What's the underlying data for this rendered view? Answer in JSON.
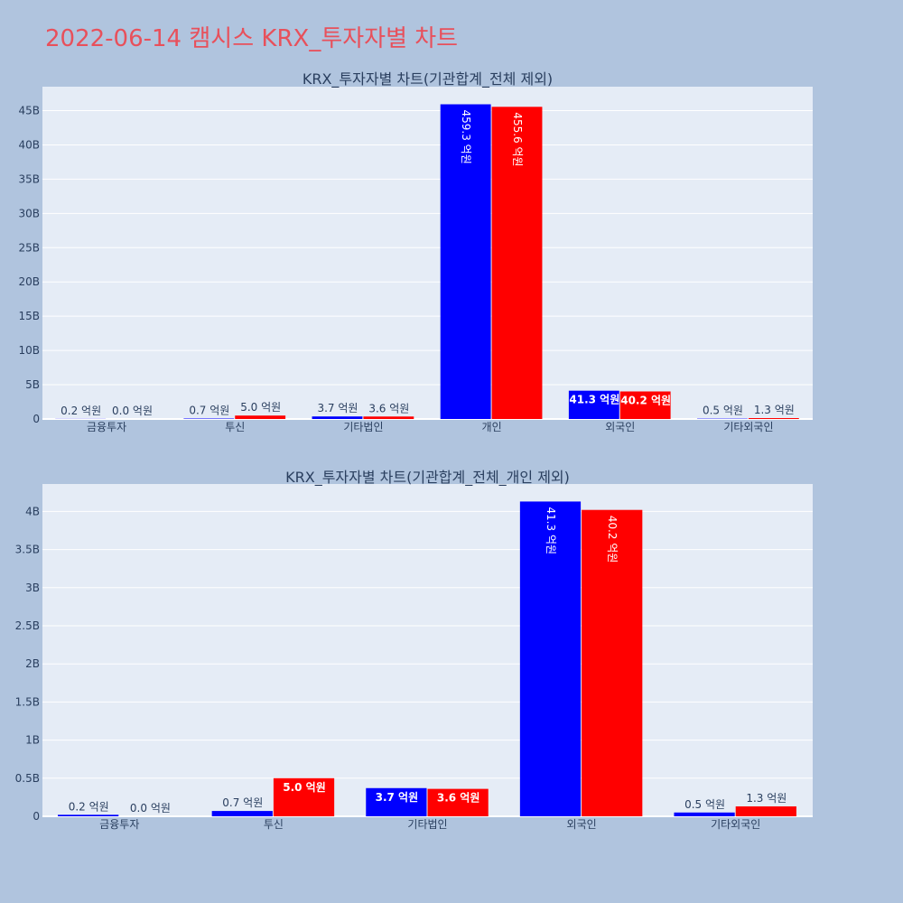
{
  "page_title": "2022-06-14 캠시스 KRX_투자자별 차트",
  "colors": {
    "background": "#b0c4de",
    "plot_bg": "#e5ecf6",
    "title": "#e8505b",
    "series_a": "#0000ff",
    "series_b": "#ff0000"
  },
  "chart_data": [
    {
      "type": "bar",
      "title": "KRX_투자자별 차트(기관합계_전체 제외)",
      "categories": [
        "금융투자",
        "투신",
        "기타법인",
        "개인",
        "외국인",
        "기타외국인"
      ],
      "series": [
        {
          "color": "#0000ff",
          "values": [
            20000000,
            70000000,
            370000000,
            45930000000,
            4130000000,
            50000000
          ],
          "labels": [
            "0.2 억원",
            "0.7 억원",
            "3.7 억원",
            "459.3 억원",
            "41.3 억원",
            "0.5 억원"
          ]
        },
        {
          "color": "#ff0000",
          "values": [
            0,
            500000000,
            360000000,
            45560000000,
            4020000000,
            130000000
          ],
          "labels": [
            "0.0 억원",
            "5.0 억원",
            "3.6 억원",
            "455.6 억원",
            "40.2 억원",
            "1.3 억원"
          ]
        }
      ],
      "ylim": [
        0,
        48500000000
      ],
      "yticks": [
        0,
        5000000000,
        10000000000,
        15000000000,
        20000000000,
        25000000000,
        30000000000,
        35000000000,
        40000000000,
        45000000000
      ],
      "yticklabels": [
        "0",
        "5B",
        "10B",
        "15B",
        "20B",
        "25B",
        "30B",
        "35B",
        "40B",
        "45B"
      ],
      "grid": true
    },
    {
      "type": "bar",
      "title": "KRX_투자자별 차트(기관합계_전체_개인 제외)",
      "categories": [
        "금융투자",
        "투신",
        "기타법인",
        "외국인",
        "기타외국인"
      ],
      "series": [
        {
          "color": "#0000ff",
          "values": [
            20000000,
            70000000,
            370000000,
            4130000000,
            50000000
          ],
          "labels": [
            "0.2 억원",
            "0.7 억원",
            "3.7 억원",
            "41.3 억원",
            "0.5 억원"
          ]
        },
        {
          "color": "#ff0000",
          "values": [
            0,
            500000000,
            360000000,
            4020000000,
            130000000
          ],
          "labels": [
            "0.0 억원",
            "5.0 억원",
            "3.6 억원",
            "40.2 억원",
            "1.3 억원"
          ]
        }
      ],
      "ylim": [
        0,
        4360000000
      ],
      "yticks": [
        0,
        500000000,
        1000000000,
        1500000000,
        2000000000,
        2500000000,
        3000000000,
        3500000000,
        4000000000
      ],
      "yticklabels": [
        "0",
        "0.5B",
        "1B",
        "1.5B",
        "2B",
        "2.5B",
        "3B",
        "3.5B",
        "4B"
      ],
      "grid": true
    }
  ]
}
